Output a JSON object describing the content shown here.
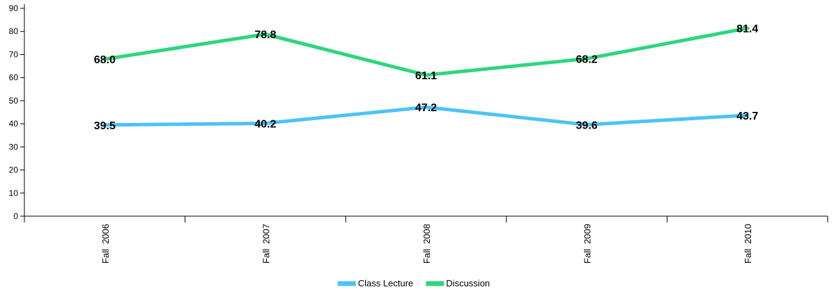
{
  "chart_data": {
    "type": "line",
    "title": "",
    "xlabel": "",
    "ylabel": "",
    "categories": [
      "Fall  2006",
      "Fall  2007",
      "Fall  2008",
      "Fall  2009",
      "Fall  2010"
    ],
    "ylim": [
      0,
      90
    ],
    "yticks": [
      0,
      10,
      20,
      30,
      40,
      50,
      60,
      70,
      80,
      90
    ],
    "grid": false,
    "legend_position": "bottom",
    "series": [
      {
        "name": "Class Lecture",
        "color": "#4dc3f5",
        "values": [
          39.5,
          40.2,
          47.2,
          39.6,
          43.7
        ],
        "labels": [
          "39.5",
          "40.2",
          "47.2",
          "39.6",
          "43.7"
        ]
      },
      {
        "name": "Discussion",
        "color": "#2fd57f",
        "values": [
          68.0,
          78.8,
          61.1,
          68.2,
          81.4
        ],
        "labels": [
          "68.0",
          "78.8",
          "61.1",
          "68.2",
          "81.4"
        ]
      }
    ]
  }
}
